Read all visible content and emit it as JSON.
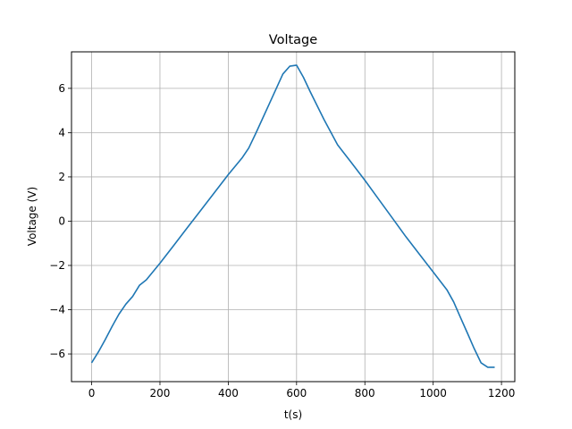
{
  "chart_data": {
    "type": "line",
    "title": "Voltage",
    "xlabel": "t(s)",
    "ylabel": "Voltage (V)",
    "xlim": [
      -59,
      1239
    ],
    "ylim": [
      -7.25,
      7.65
    ],
    "xticks": [
      0,
      200,
      400,
      600,
      800,
      1000,
      1200
    ],
    "yticks": [
      -6,
      -4,
      -2,
      0,
      2,
      4,
      6
    ],
    "xtick_labels": [
      "0",
      "200",
      "400",
      "600",
      "800",
      "1000",
      "1200"
    ],
    "ytick_labels": [
      "−6",
      "−4",
      "−2",
      "0",
      "2",
      "4",
      "6"
    ],
    "grid": true,
    "line_color": "#1f77b4",
    "series": [
      {
        "x": [
          0,
          20,
          40,
          60,
          80,
          100,
          120,
          140,
          160,
          200,
          240,
          280,
          320,
          360,
          400,
          440,
          460,
          480,
          520,
          560,
          580,
          600,
          620,
          640,
          680,
          720,
          760,
          800,
          840,
          880,
          920,
          960,
          1000,
          1040,
          1060,
          1080,
          1100,
          1120,
          1140,
          1160,
          1180
        ],
        "y": [
          -6.4,
          -5.9,
          -5.35,
          -4.75,
          -4.2,
          -3.75,
          -3.4,
          -2.9,
          -2.65,
          -1.9,
          -1.1,
          -0.3,
          0.5,
          1.3,
          2.1,
          2.85,
          3.3,
          3.95,
          5.3,
          6.65,
          7.0,
          7.05,
          6.5,
          5.85,
          4.6,
          3.45,
          2.65,
          1.85,
          1.0,
          0.15,
          -0.7,
          -1.5,
          -2.3,
          -3.1,
          -3.65,
          -4.35,
          -5.05,
          -5.75,
          -6.4,
          -6.6,
          -6.6
        ]
      }
    ]
  }
}
